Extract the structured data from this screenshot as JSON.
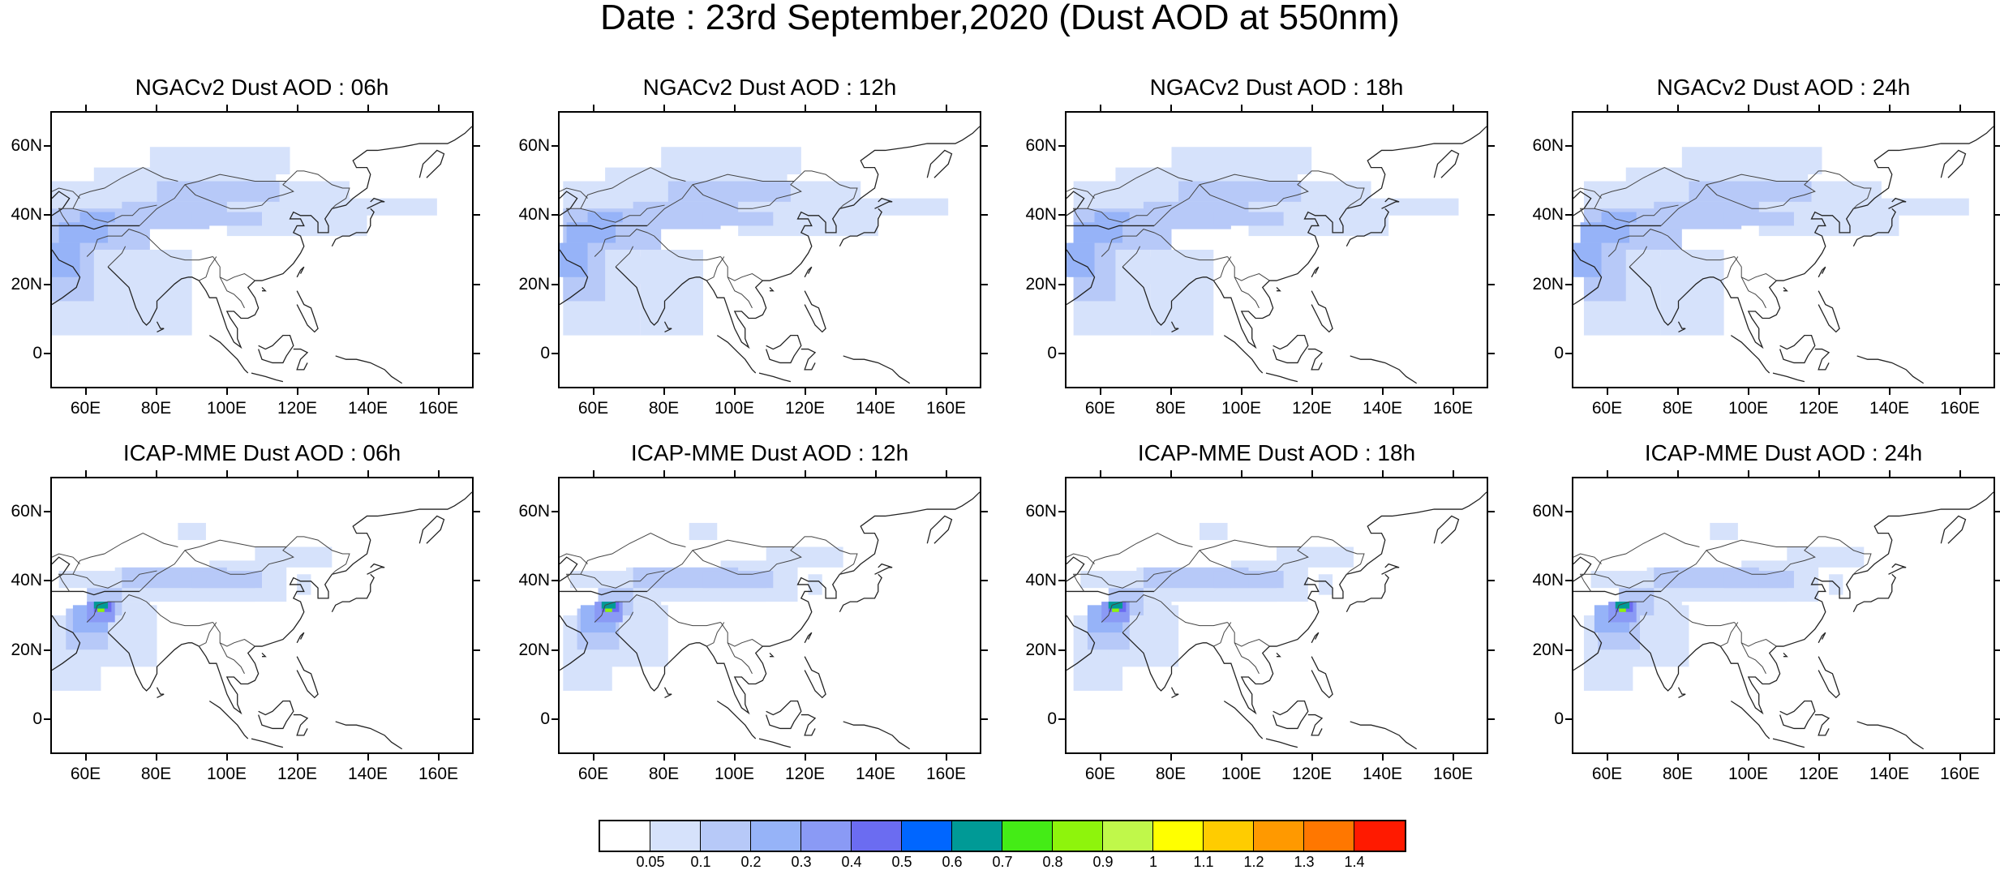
{
  "title": "Date : 23rd September,2020 (Dust AOD at 550nm)",
  "panels": [
    {
      "title": "NGACv2 Dust AOD : 06h",
      "model": "ngac"
    },
    {
      "title": "NGACv2 Dust AOD : 12h",
      "model": "ngac"
    },
    {
      "title": "NGACv2 Dust AOD : 18h",
      "model": "ngac"
    },
    {
      "title": "NGACv2 Dust AOD : 24h",
      "model": "ngac"
    },
    {
      "title": "ICAP-MME Dust AOD : 06h",
      "model": "icap"
    },
    {
      "title": "ICAP-MME Dust AOD : 12h",
      "model": "icap"
    },
    {
      "title": "ICAP-MME Dust AOD : 18h",
      "model": "icap"
    },
    {
      "title": "ICAP-MME Dust AOD : 24h",
      "model": "icap"
    }
  ],
  "lat_labels": [
    "60N",
    "40N",
    "20N",
    "0"
  ],
  "lon_labels": [
    "60E",
    "80E",
    "100E",
    "120E",
    "140E",
    "160E"
  ],
  "colorbar": {
    "colors": [
      "#ffffff",
      "#d6e2fb",
      "#b7c9f8",
      "#96b3f8",
      "#8a9af5",
      "#6b6cf1",
      "#0066ff",
      "#009a96",
      "#44ec16",
      "#8ef40c",
      "#c0f84a",
      "#ffff00",
      "#ffcc00",
      "#ff9900",
      "#ff7700",
      "#ff1a00"
    ],
    "labels": [
      "0.05",
      "0.1",
      "0.2",
      "0.3",
      "0.4",
      "0.5",
      "0.6",
      "0.7",
      "0.8",
      "0.9",
      "1",
      "1.1",
      "1.2",
      "1.3",
      "1.4"
    ]
  }
}
